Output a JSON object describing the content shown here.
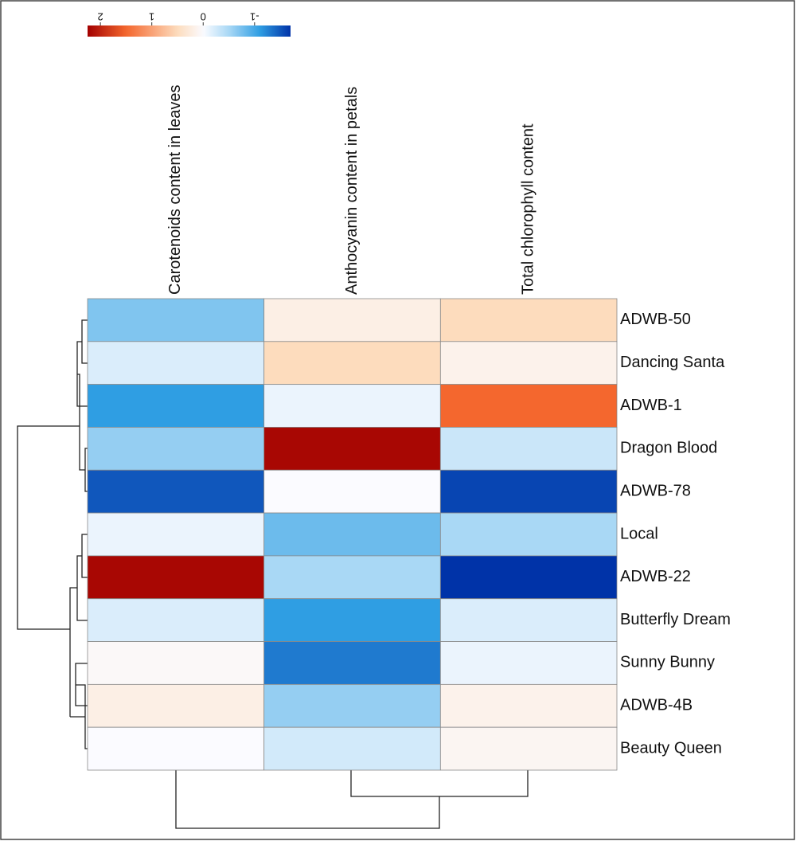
{
  "chart_data": {
    "type": "heatmap",
    "columns": [
      "Carotenoids content in leaves",
      "Anthocyanin content in petals",
      "Total chlorophyll content"
    ],
    "rows": [
      "ADWB-50",
      "Dancing Santa",
      "ADWB-1",
      "Dragon Blood",
      "ADWB-78",
      "Local",
      "ADWB-22",
      "Butterfly Dream",
      "Sunny Bunny",
      "ADWB-4B",
      "Beauty Queen"
    ],
    "values": [
      [
        -0.7,
        0.2,
        0.5
      ],
      [
        -0.2,
        0.5,
        0.15
      ],
      [
        -1.1,
        -0.1,
        1.5
      ],
      [
        -0.6,
        2.2,
        -0.3
      ],
      [
        -1.5,
        0.0,
        -1.6
      ],
      [
        -0.1,
        -0.8,
        -0.5
      ],
      [
        2.2,
        -0.5,
        -1.7
      ],
      [
        -0.2,
        -1.1,
        -0.2
      ],
      [
        0.05,
        -1.3,
        -0.1
      ],
      [
        0.2,
        -0.6,
        0.15
      ],
      [
        0.0,
        -0.25,
        0.1
      ]
    ],
    "colorbar_lim": [
      2.25,
      -1.7
    ],
    "colorbar_ticks": [
      2,
      1,
      0,
      -1
    ],
    "colorscale": [
      {
        "value": -1.7,
        "color": "#0033a8"
      },
      {
        "value": -1.1,
        "color": "#2f9ee3"
      },
      {
        "value": -0.5,
        "color": "#a9d8f5"
      },
      {
        "value": 0,
        "color": "#fbfbff"
      },
      {
        "value": 0.5,
        "color": "#fddcbd"
      },
      {
        "value": 1.5,
        "color": "#f4672e"
      },
      {
        "value": 2.25,
        "color": "#a30000"
      }
    ]
  }
}
